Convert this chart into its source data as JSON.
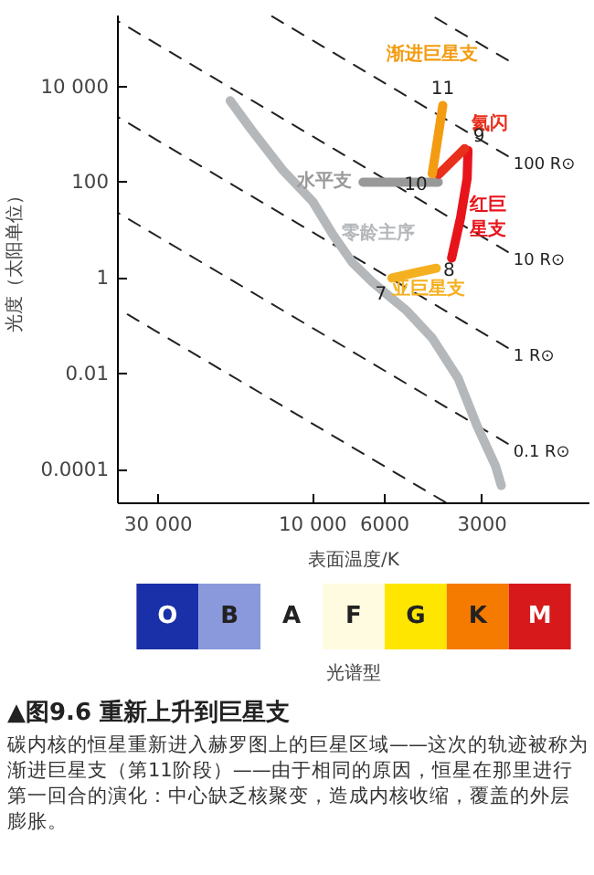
{
  "chart_data": [
    {
      "type": "line",
      "xlabel": "表面温度/K",
      "ylabel": "光度（太阳单位）",
      "log": "xy",
      "xlim": [
        40000,
        1400
      ],
      "ylim": [
        2e-05,
        300000
      ],
      "xticks": [
        {
          "value": 30000,
          "label": "30 000"
        },
        {
          "value": 10000,
          "label": "10 000"
        },
        6000,
        3000
      ],
      "yticks": [
        {
          "value": 10000,
          "label": "10 000"
        },
        100,
        1,
        0.01,
        0.0001
      ],
      "grid": false,
      "legend": false,
      "series": [
        {
          "type": "line",
          "line_style": "dashed",
          "color": "#222222",
          "x": [
            4300,
            2500
          ],
          "values": [
            300000,
            35000
          ]
        },
        {
          "name": "100 R⊙",
          "type": "line",
          "line_style": "dashed",
          "color": "#222222",
          "x": [
            13500,
            2500
          ],
          "values": [
            300000,
            350
          ]
        },
        {
          "name": "10 R⊙",
          "type": "line",
          "line_style": "dashed",
          "color": "#222222",
          "x": [
            40000,
            2500
          ],
          "values": [
            230000,
            3.5
          ]
        },
        {
          "name": "1 R⊙",
          "type": "line",
          "line_style": "dashed",
          "color": "#222222",
          "x": [
            40000,
            2500
          ],
          "values": [
            2300,
            0.035
          ]
        },
        {
          "name": "0.1 R⊙",
          "type": "line",
          "line_style": "dashed",
          "color": "#222222",
          "x": [
            40000,
            2500
          ],
          "values": [
            23,
            0.00035
          ]
        },
        {
          "type": "line",
          "line_style": "dashed",
          "color": "#222222",
          "x": [
            40000,
            3900
          ],
          "values": [
            0.23,
            2.1e-05
          ]
        },
        {
          "name": "零龄主序",
          "type": "line",
          "line_style": "solid",
          "color": "#b5b8bb",
          "x": [
            18000,
            15500,
            12400,
            10000,
            8700,
            7550,
            6560,
            5890,
            5140,
            4280,
            3560,
            3110,
            2730,
            2620
          ],
          "values": [
            5000,
            1260,
            180,
            39,
            8.3,
            2.1,
            0.83,
            0.45,
            0.21,
            0.056,
            0.0081,
            0.00081,
            0.00012,
            4.7e-05
          ]
        },
        {
          "name": "水平支",
          "type": "line",
          "line_style": "solid",
          "color": "#999999",
          "x": [
            7000,
            4100
          ],
          "values": [
            100,
            100
          ]
        },
        {
          "name": "亚巨星支",
          "type": "line",
          "line_style": "solid",
          "color": "#f5b020",
          "x": [
            5700,
            4800,
            4160
          ],
          "values": [
            1,
            1.3,
            1.6
          ]
        },
        {
          "name": "红巨星支",
          "type": "line",
          "line_style": "solid",
          "color": "#e8141b",
          "x": [
            3730,
            3500,
            3340,
            3320
          ],
          "values": [
            2.6,
            18,
            120,
            460
          ]
        },
        {
          "name": "氦闪",
          "type": "line",
          "line_style": "solid",
          "color": "#e8301b",
          "x": [
            3400,
            4090
          ],
          "values": [
            500,
            145
          ]
        },
        {
          "name": "渐进巨星支",
          "type": "line",
          "line_style": "solid",
          "color": "#f39c12",
          "x": [
            4280,
            3970
          ],
          "values": [
            150,
            4000
          ]
        }
      ],
      "annotations": [
        {
          "text": "7",
          "x": 5700,
          "y": 1
        },
        {
          "text": "8",
          "x": 4160,
          "y": 1.6
        },
        {
          "text": "9",
          "x": 3320,
          "y": 460
        },
        {
          "text": "10",
          "x": 4280,
          "y": 150
        },
        {
          "text": "11",
          "x": 3970,
          "y": 4000
        }
      ]
    },
    {
      "type": "other",
      "xlabel": "光谱型",
      "categories": [
        "O",
        "B",
        "A",
        "F",
        "G",
        "K",
        "M"
      ],
      "colors": [
        "#1a30a8",
        "#8a98dc",
        "#ffffff",
        "#fffbe0",
        "#ffe600",
        "#f57a00",
        "#d7191c"
      ],
      "title": "▲图9.6  重新上升到巨星支",
      "annotations": [
        "碳内核的恒星重新进入赫罗图上的巨星区域——这次的轨迹被称为渐进巨星支（第11阶段）——由于相同的原因，恒星在那里进行第一回合的演化：中心缺乏核聚变，造成内核收缩，覆盖的外层膨胀。"
      ]
    }
  ]
}
